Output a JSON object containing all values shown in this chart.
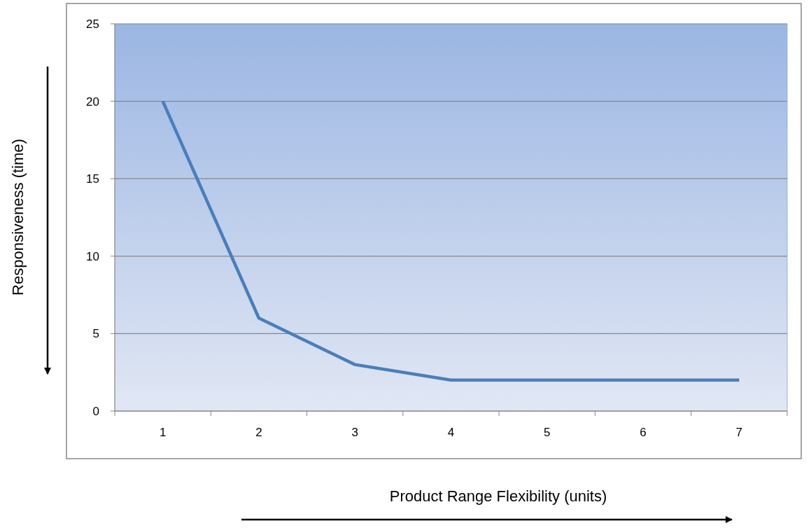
{
  "chart_data": {
    "type": "line",
    "xlabel": "Product Range Flexibility (units)",
    "ylabel": "Responsiveness (time)",
    "categories": [
      "1",
      "2",
      "3",
      "4",
      "5",
      "6",
      "7"
    ],
    "series": [
      {
        "color": "#4a7ebb",
        "values": [
          20,
          6,
          3,
          2,
          2,
          2,
          2
        ]
      }
    ],
    "ylim": [
      0,
      25
    ],
    "yticks": [
      0,
      5,
      10,
      15,
      20,
      25
    ],
    "grid": "y",
    "marker": "none",
    "line_style": "solid"
  }
}
